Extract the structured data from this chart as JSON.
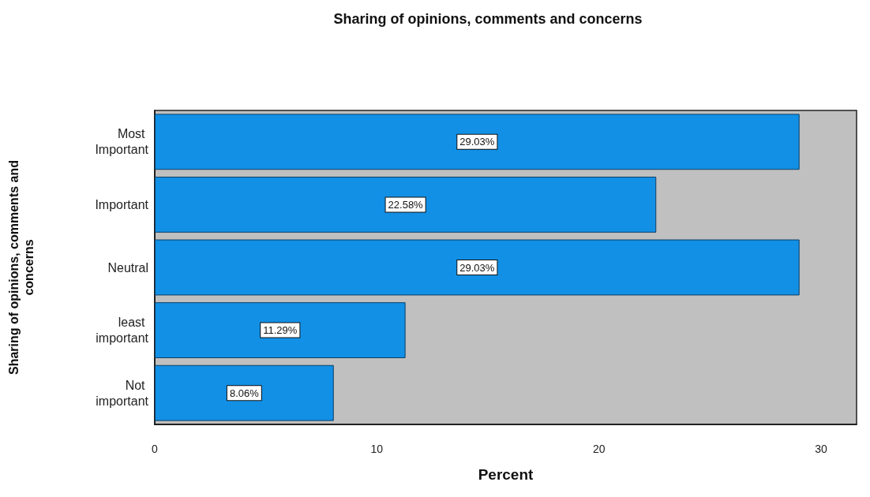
{
  "chart_data": {
    "type": "bar",
    "orientation": "horizontal",
    "title": "Sharing of opinions, comments and concerns",
    "xlabel": "Percent",
    "ylabel": "Sharing of opinions, comments and concerns",
    "categories": [
      "Most Important",
      "Important",
      "Neutral",
      "least important",
      "Not important"
    ],
    "values": [
      29.03,
      22.58,
      29.03,
      11.29,
      8.06
    ],
    "value_labels": [
      "29.03%",
      "22.58%",
      "29.03%",
      "11.29%",
      "8.06%"
    ],
    "color": "#1290e6",
    "xlim": [
      0,
      31.6
    ],
    "xticks": [
      0,
      10,
      20,
      30
    ]
  }
}
